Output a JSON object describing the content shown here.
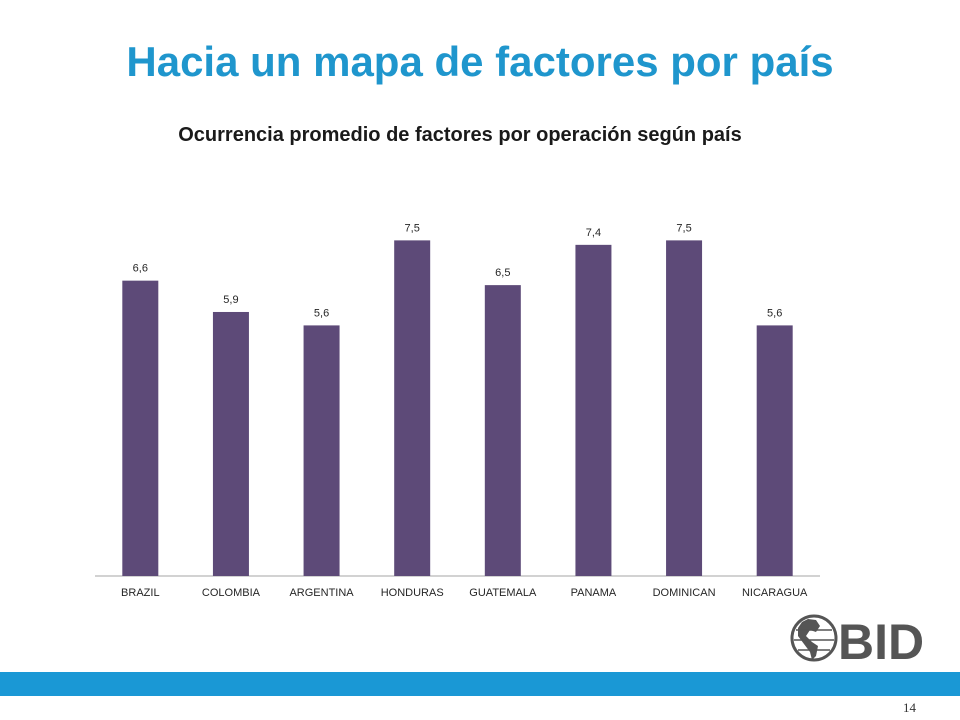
{
  "slide": {
    "title": "Hacia un mapa de factores por país",
    "page_number": "14",
    "logo_text": "BID"
  },
  "colors": {
    "title": "#1f96cd",
    "bar": "#5d4a78",
    "footer_band": "#1a98d5",
    "axis": "#a6a6a6",
    "label_text": "#262626",
    "logo": "#555555"
  },
  "chart_data": {
    "type": "bar",
    "title": "Ocurrencia promedio de factores por operación según país",
    "xlabel": "",
    "ylabel": "",
    "categories": [
      "BRAZIL",
      "COLOMBIA",
      "ARGENTINA",
      "HONDURAS",
      "GUATEMALA",
      "PANAMA",
      "DOMINICAN",
      "NICARAGUA"
    ],
    "values": [
      6.6,
      5.9,
      5.6,
      7.5,
      6.5,
      7.4,
      7.5,
      5.6
    ],
    "data_labels": [
      "6,6",
      "5,9",
      "5,6",
      "7,5",
      "6,5",
      "7,4",
      "7,5",
      "5,6"
    ],
    "ylim": [
      0,
      8
    ],
    "grid": false,
    "legend": "none"
  }
}
